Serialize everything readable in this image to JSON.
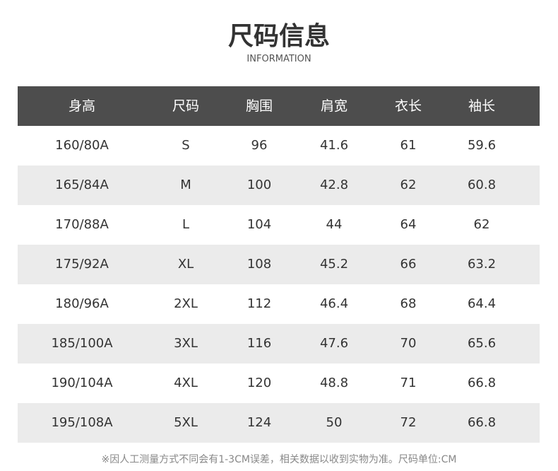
{
  "header": {
    "title": "尺码信息",
    "subtitle": "INFORMATION"
  },
  "table": {
    "columns": [
      "身高",
      "尺码",
      "胸围",
      "肩宽",
      "衣长",
      "袖长"
    ],
    "rows": [
      [
        "160/80A",
        "S",
        "96",
        "41.6",
        "61",
        "59.6"
      ],
      [
        "165/84A",
        "M",
        "100",
        "42.8",
        "62",
        "60.8"
      ],
      [
        "170/88A",
        "L",
        "104",
        "44",
        "64",
        "62"
      ],
      [
        "175/92A",
        "XL",
        "108",
        "45.2",
        "66",
        "63.2"
      ],
      [
        "180/96A",
        "2XL",
        "112",
        "46.4",
        "68",
        "64.4"
      ],
      [
        "185/100A",
        "3XL",
        "116",
        "47.6",
        "70",
        "65.6"
      ],
      [
        "190/104A",
        "4XL",
        "120",
        "48.8",
        "71",
        "66.8"
      ],
      [
        "195/108A",
        "5XL",
        "124",
        "50",
        "72",
        "66.8"
      ]
    ]
  },
  "footer": {
    "note": "※因人工测量方式不同会有1-3CM误差，相关数据以收到实物为准。尺码单位:CM"
  }
}
